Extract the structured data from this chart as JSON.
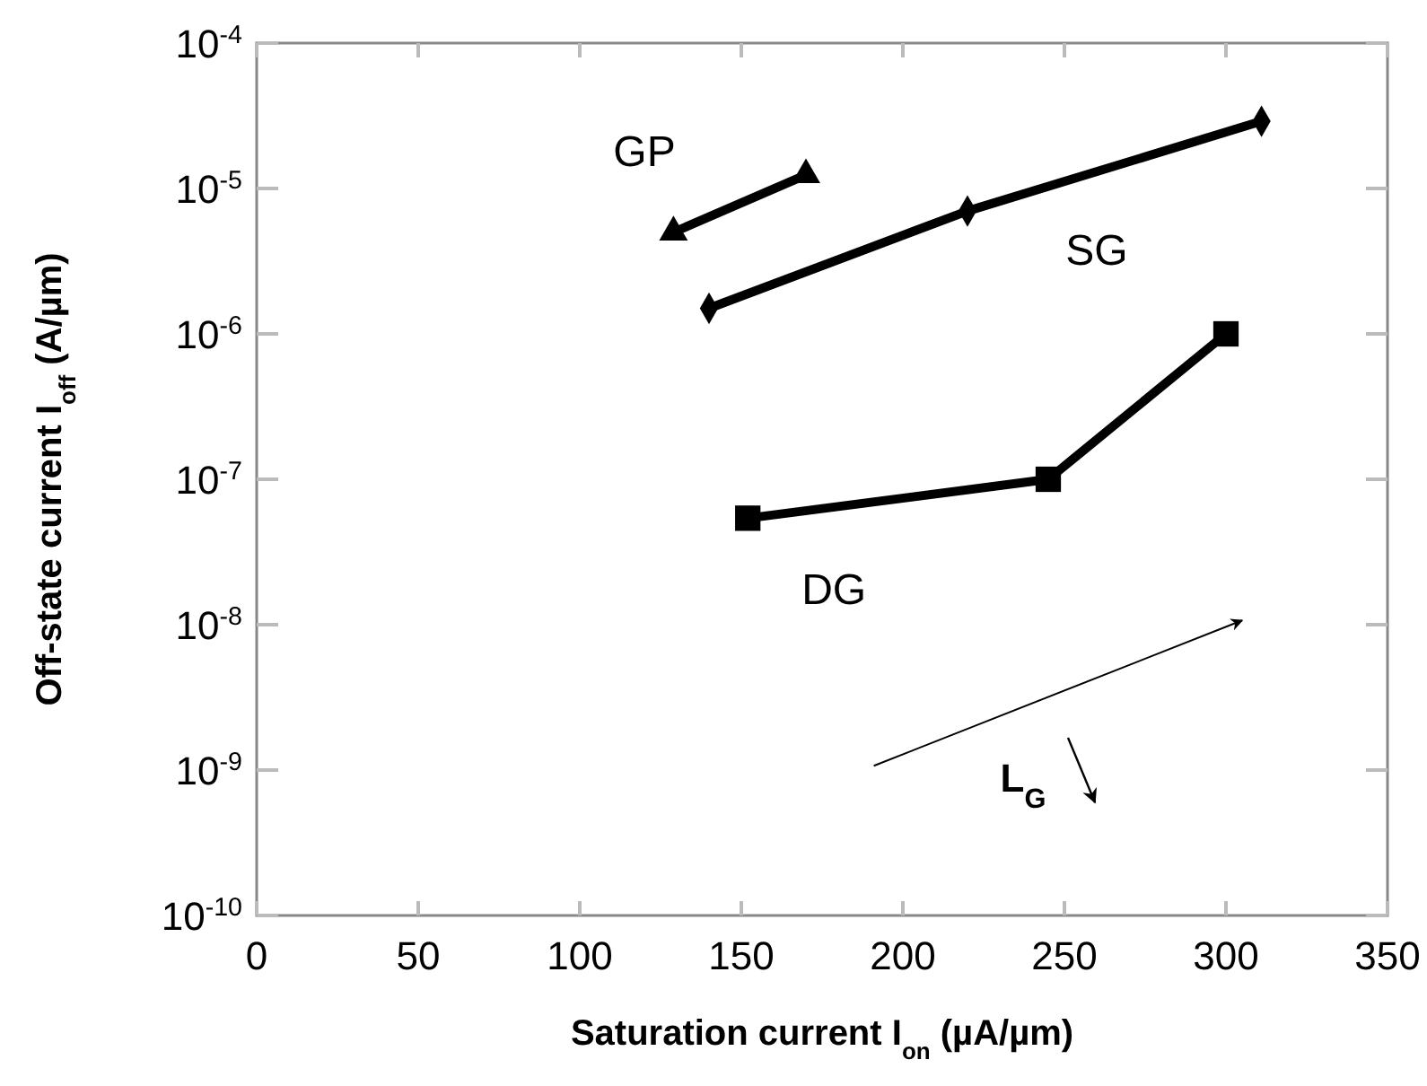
{
  "chart_data": {
    "type": "line",
    "xlabel": "Saturation current I$_{on}$ (µA/µm)",
    "ylabel": "Off-state current I$_{off}$ (A/µm)",
    "log": "y",
    "xlim": [
      0,
      350
    ],
    "xticks": [
      0,
      50,
      100,
      150,
      200,
      250,
      300,
      350
    ],
    "ylim": [
      1e-10,
      0.0001
    ],
    "yticks": [
      {
        "value": 1e-10,
        "label": "10$^{-10}$"
      },
      {
        "value": 1e-09,
        "label": "10$^{-9}$"
      },
      {
        "value": 1e-08,
        "label": "10$^{-8}$"
      },
      {
        "value": 1e-07,
        "label": "10$^{-7}$"
      },
      {
        "value": 1e-06,
        "label": "10$^{-6}$"
      },
      {
        "value": 1e-05,
        "label": "10$^{-5}$"
      },
      {
        "value": 0.0001,
        "label": "10$^{-4}$"
      }
    ],
    "grid": false,
    "line_style": "solid",
    "series": [
      {
        "name": "GP",
        "color": "#000000",
        "marker": "triangle",
        "x": [
          170,
          129
        ],
        "values": [
          1.24e-05,
          5e-06
        ]
      },
      {
        "name": "SG",
        "color": "#000000",
        "marker": "diamond",
        "x": [
          140,
          220,
          311
        ],
        "values": [
          1.5e-06,
          7e-06,
          2.9e-05
        ]
      },
      {
        "name": "DG",
        "color": "#000000",
        "marker": "square",
        "x": [
          152,
          245,
          300
        ],
        "values": [
          5.4e-08,
          1e-07,
          1e-06
        ]
      }
    ],
    "annotations": [
      "L$_{G}$"
    ]
  }
}
